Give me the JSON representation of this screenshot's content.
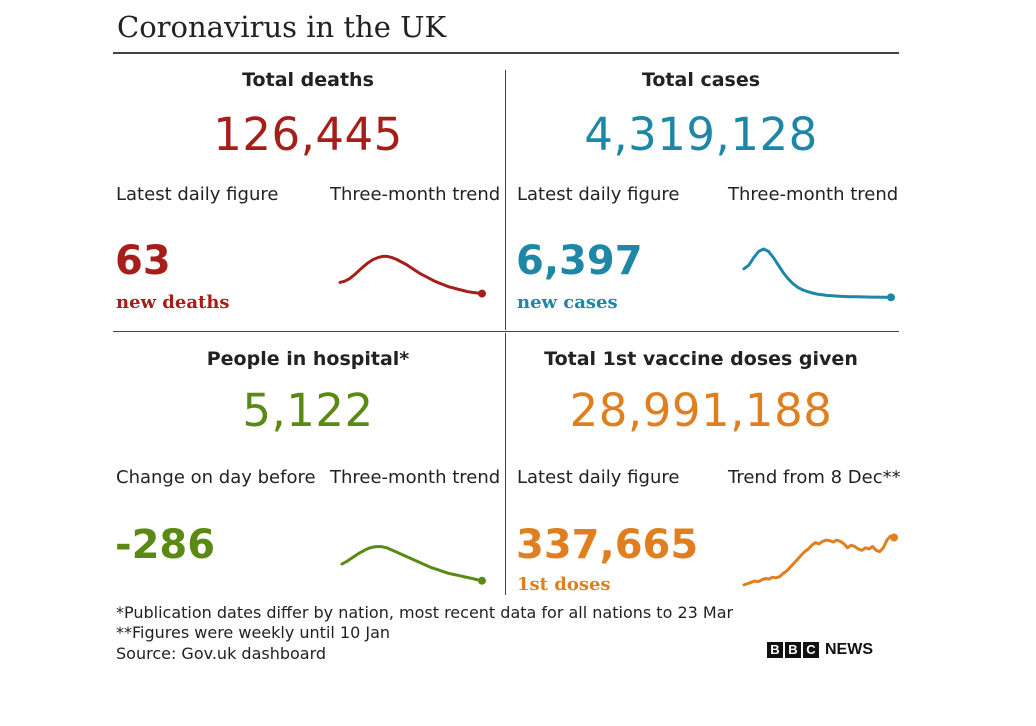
{
  "title": "Coronavirus in the UK",
  "colors": {
    "deaths": "#a61e1a",
    "cases": "#1f87a6",
    "hospital": "#5a8a14",
    "vaccine": "#e07f1f"
  },
  "panels": {
    "deaths": {
      "heading": "Total deaths",
      "total": "126,445",
      "left_label": "Latest daily figure",
      "right_label": "Three-month trend",
      "daily": "63",
      "note": "new deaths"
    },
    "cases": {
      "heading": "Total cases",
      "total": "4,319,128",
      "left_label": "Latest daily figure",
      "right_label": "Three-month trend",
      "daily": "6,397",
      "note": "new cases"
    },
    "hospital": {
      "heading": "People in hospital*",
      "total": "5,122",
      "left_label": "Change on day before",
      "right_label": "Three-month trend",
      "daily": "-286",
      "note": ""
    },
    "vaccine": {
      "heading": "Total 1st vaccine doses given",
      "total": "28,991,188",
      "left_label": "Latest daily figure",
      "right_label": "Trend from 8 Dec**",
      "daily": "337,665",
      "note": "1st doses"
    }
  },
  "chart_data": [
    {
      "type": "line",
      "panel": "deaths",
      "values": [
        38,
        40,
        44,
        50,
        57,
        64,
        70,
        75,
        78,
        80,
        80,
        78,
        75,
        71,
        67,
        62,
        57,
        52,
        48,
        44,
        40,
        37,
        34,
        31,
        29,
        27,
        25,
        23,
        22,
        21,
        20
      ],
      "ylim": [
        0,
        100
      ]
    },
    {
      "type": "line",
      "panel": "cases",
      "values": [
        60,
        66,
        78,
        88,
        92,
        88,
        78,
        66,
        54,
        44,
        36,
        30,
        26,
        23,
        21,
        19,
        18,
        17,
        16.5,
        16,
        15.5,
        15.2,
        15,
        14.8,
        14.6,
        14.5,
        14.4,
        14.3,
        14.2,
        14.1,
        14
      ],
      "ylim": [
        0,
        100
      ]
    },
    {
      "type": "line",
      "panel": "hospital",
      "values": [
        42,
        47,
        53,
        59,
        64,
        68,
        70,
        70,
        68,
        64,
        60,
        56,
        52,
        48,
        44,
        40,
        36,
        33,
        30,
        27,
        25,
        23,
        21,
        19,
        17,
        15
      ],
      "ylim": [
        0,
        100
      ]
    },
    {
      "type": "line",
      "panel": "vaccine",
      "values": [
        8,
        10,
        12,
        14,
        13,
        16,
        18,
        17,
        20,
        19,
        21,
        26,
        30,
        36,
        42,
        48,
        54,
        60,
        64,
        70,
        74,
        72,
        76,
        78,
        77,
        75,
        78,
        76,
        72,
        66,
        70,
        68,
        64,
        62,
        66,
        64,
        68,
        62,
        60,
        66,
        78,
        84,
        82
      ],
      "ylim": [
        0,
        100
      ]
    }
  ],
  "footnotes": [
    "*Publication dates differ by nation, most recent data for all nations to 23 Mar",
    "**Figures were weekly until 10 Jan",
    "Source: Gov.uk dashboard"
  ],
  "logo": {
    "letters": [
      "B",
      "B",
      "C"
    ],
    "word": "NEWS"
  }
}
